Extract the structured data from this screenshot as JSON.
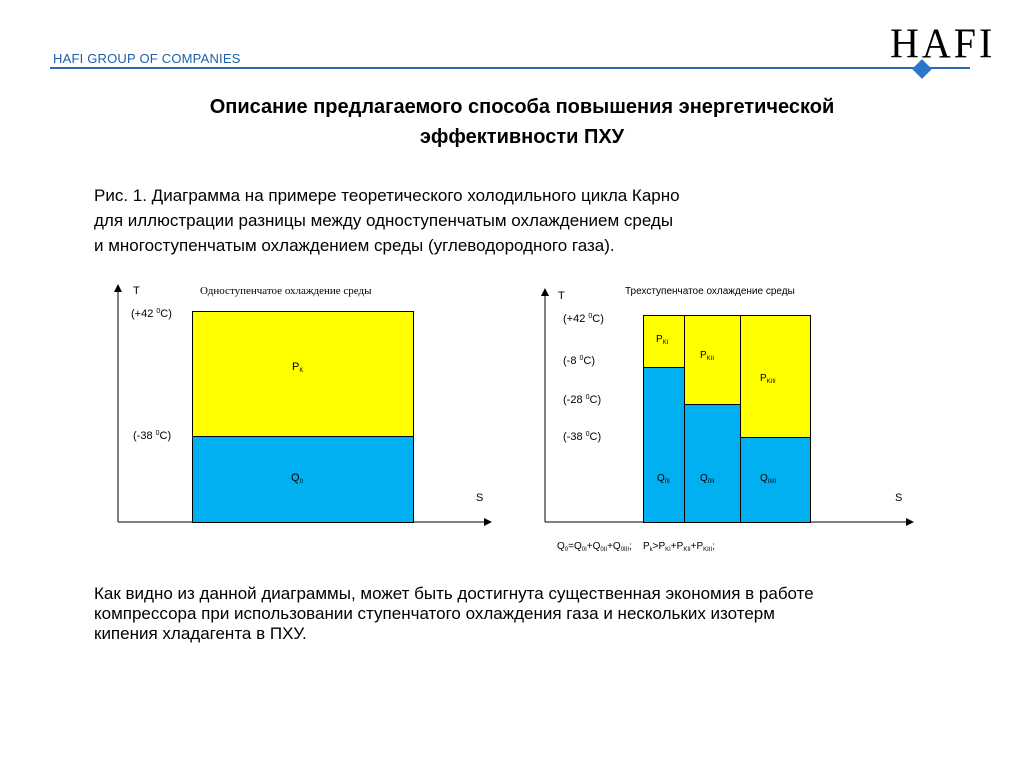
{
  "header": {
    "company": "HAFI GROUP OF COMPANIES",
    "logo_text": "HAFI"
  },
  "slide": {
    "title_line1": "Описание предлагаемого способа повышения энергетической",
    "title_line2": "эффективности ПХУ",
    "caption": [
      "Рис. 1. Диаграмма на примере теоретического холодильного цикла Карно",
      "для иллюстрации разницы между одноступенчатым охлаждением среды",
      "и многоступенчатым охлаждением среды (углеводородного газа)."
    ],
    "summary": [
      "Как видно из данной диаграммы, может быть достигнута существенная экономия в работе",
      "компрессора при использовании ступенчатого охлаждения газа и нескольких изотерм",
      "кипения хладагента в ПХУ."
    ]
  },
  "diagram_left": {
    "title": "Одноступенчатое охлаждение среды",
    "y_axis": "T",
    "x_axis": "S",
    "temps": [
      {
        "pre": "(+42 ",
        "sup": "0",
        "post": "C)"
      },
      {
        "pre": "(-38 ",
        "sup": "0",
        "post": "C)"
      }
    ],
    "work_label": {
      "main": "P",
      "sub": "K"
    },
    "heat_label": {
      "main": "Q",
      "sub": "0"
    }
  },
  "diagram_right": {
    "title": "Трехступенчатое охлаждение среды",
    "y_axis": "T",
    "x_axis": "S",
    "temps": [
      {
        "pre": "(+42 ",
        "sup": "0",
        "post": "C)"
      },
      {
        "pre": "(-8 ",
        "sup": "0",
        "post": "C)"
      },
      {
        "pre": "(-28 ",
        "sup": "0",
        "post": "C)"
      },
      {
        "pre": "(-38 ",
        "sup": "0",
        "post": "C)"
      }
    ],
    "work_labels": [
      {
        "main": "P",
        "sub": "KI"
      },
      {
        "main": "P",
        "sub": "KII"
      },
      {
        "main": "P",
        "sub": "KIII"
      }
    ],
    "heat_labels": [
      {
        "main": "Q",
        "sub": "0I"
      },
      {
        "main": "Q",
        "sub": "0II"
      },
      {
        "main": "Q",
        "sub": "0III"
      }
    ],
    "formula_q": {
      "a": "Q",
      "a_sub": "0",
      "eq": "=Q",
      "b_sub": "0I",
      "p1": "+Q",
      "c_sub": "0II",
      "p2": "+Q",
      "d_sub": "0III",
      "end": ";"
    },
    "formula_p": {
      "a": "P",
      "a_sub": "k",
      "gt": ">P",
      "b_sub": "KI",
      "p1": "+P",
      "c_sub": "KII",
      "p2": "+P",
      "d_sub": "KIII",
      "end": ";"
    }
  }
}
